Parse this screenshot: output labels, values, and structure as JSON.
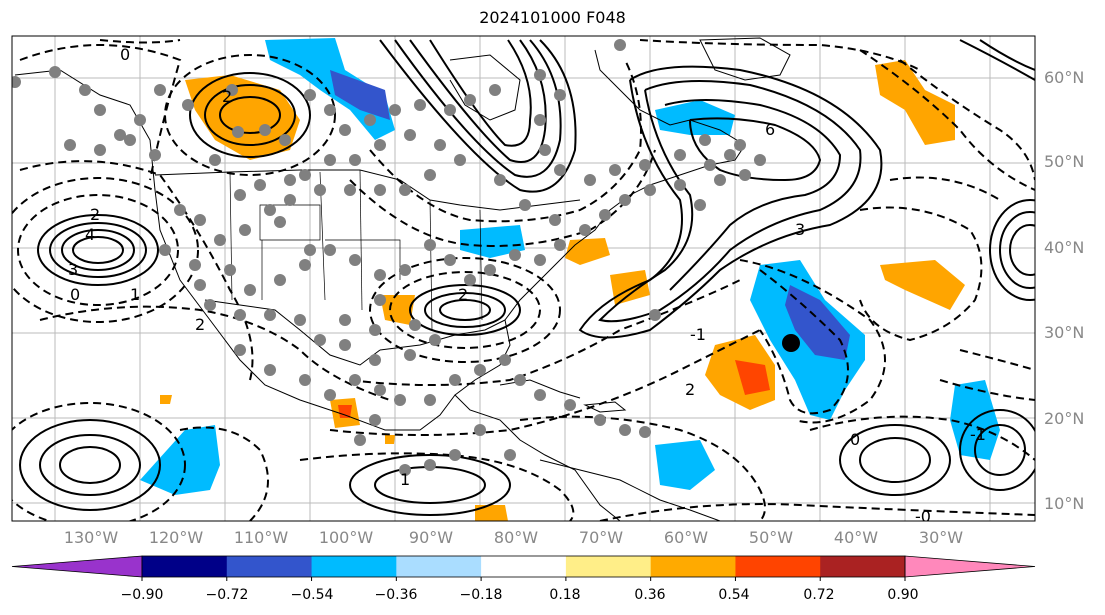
{
  "title": "2024101000 F048",
  "map": {
    "lat_labels": [
      "60°N",
      "50°N",
      "40°N",
      "30°N",
      "20°N",
      "10°N"
    ],
    "lon_labels": [
      "130°W",
      "120°W",
      "110°W",
      "100°W",
      "90°W",
      "80°W",
      "70°W",
      "60°W",
      "50°W",
      "40°W",
      "30°W"
    ],
    "contour_labels": [
      "2",
      "0",
      "4",
      "3",
      "1",
      "2",
      "0",
      "-1",
      "6",
      "3",
      "2",
      "2",
      "0",
      "-1",
      "1",
      "-0",
      "2"
    ]
  },
  "colorbar": {
    "colors": [
      "#9933cc",
      "#000088",
      "#3355cc",
      "#00bbff",
      "#aaddff",
      "#ffffff",
      "#ffee88",
      "#ffaa00",
      "#ff4400",
      "#aa2222",
      "#ff88bb"
    ],
    "tick_labels": [
      "−0.90",
      "−0.72",
      "−0.54",
      "−0.36",
      "−0.18",
      "0.18",
      "0.36",
      "0.54",
      "0.72",
      "0.90"
    ]
  },
  "colors": {
    "positive_fill": "#ffa500",
    "positive_strong": "#ff4500",
    "negative_fill": "#00bbff",
    "negative_strong": "#3355cc",
    "station_marker": "#808080"
  }
}
